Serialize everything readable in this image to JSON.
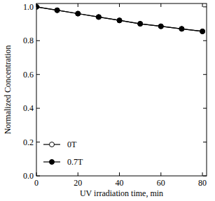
{
  "chart_data": {
    "type": "line",
    "x_label": "UV irradiation time, min",
    "y_label": "Normalized Concentration",
    "x": [
      0,
      10,
      20,
      30,
      40,
      50,
      60,
      70,
      80
    ],
    "series": [
      {
        "name": "0T",
        "color": "#000000",
        "marker": "open-circle",
        "line_style": "solid",
        "values": [
          1.0,
          0.98,
          0.96,
          0.94,
          0.92,
          0.9,
          0.885,
          0.87,
          0.855
        ]
      },
      {
        "name": "0.7T",
        "color": "#000000",
        "marker": "filled-circle",
        "line_style": "solid",
        "values": [
          1.0,
          0.98,
          0.96,
          0.94,
          0.92,
          0.9,
          0.885,
          0.87,
          0.855
        ]
      }
    ],
    "xlim": [
      0,
      82
    ],
    "ylim": [
      0,
      1.02
    ],
    "xticks": [
      0,
      20,
      40,
      60,
      80
    ],
    "yticks": [
      {
        "value": 0,
        "label": "0.0"
      },
      {
        "value": 0.2,
        "label": "0.2"
      },
      {
        "value": 0.4,
        "label": "0.4"
      },
      {
        "value": 0.6,
        "label": "0.6"
      },
      {
        "value": 0.8,
        "label": "0.8"
      },
      {
        "value": 1.0,
        "label": "1.0"
      }
    ],
    "grid": false,
    "legend": "lower left"
  }
}
